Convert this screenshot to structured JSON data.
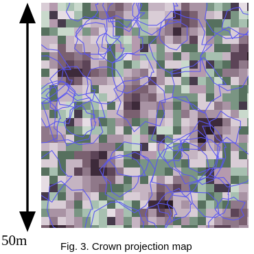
{
  "figure": {
    "scale_label": "50m",
    "caption": "Fig. 3. Crown projection map",
    "map_image_label": "",
    "colors": {
      "boundary": "#5a56f2",
      "arrow": "#000000",
      "palette": [
        "#2a1c24",
        "#3d2a3a",
        "#5c4457",
        "#7a6070",
        "#8f7889",
        "#a993a4",
        "#c5b4c2",
        "#d9cdd6",
        "#56705e",
        "#7a9583",
        "#a7c0b0",
        "#c9d9cc",
        "#463a4b",
        "#b59aae",
        "#e6dde4"
      ]
    }
  }
}
